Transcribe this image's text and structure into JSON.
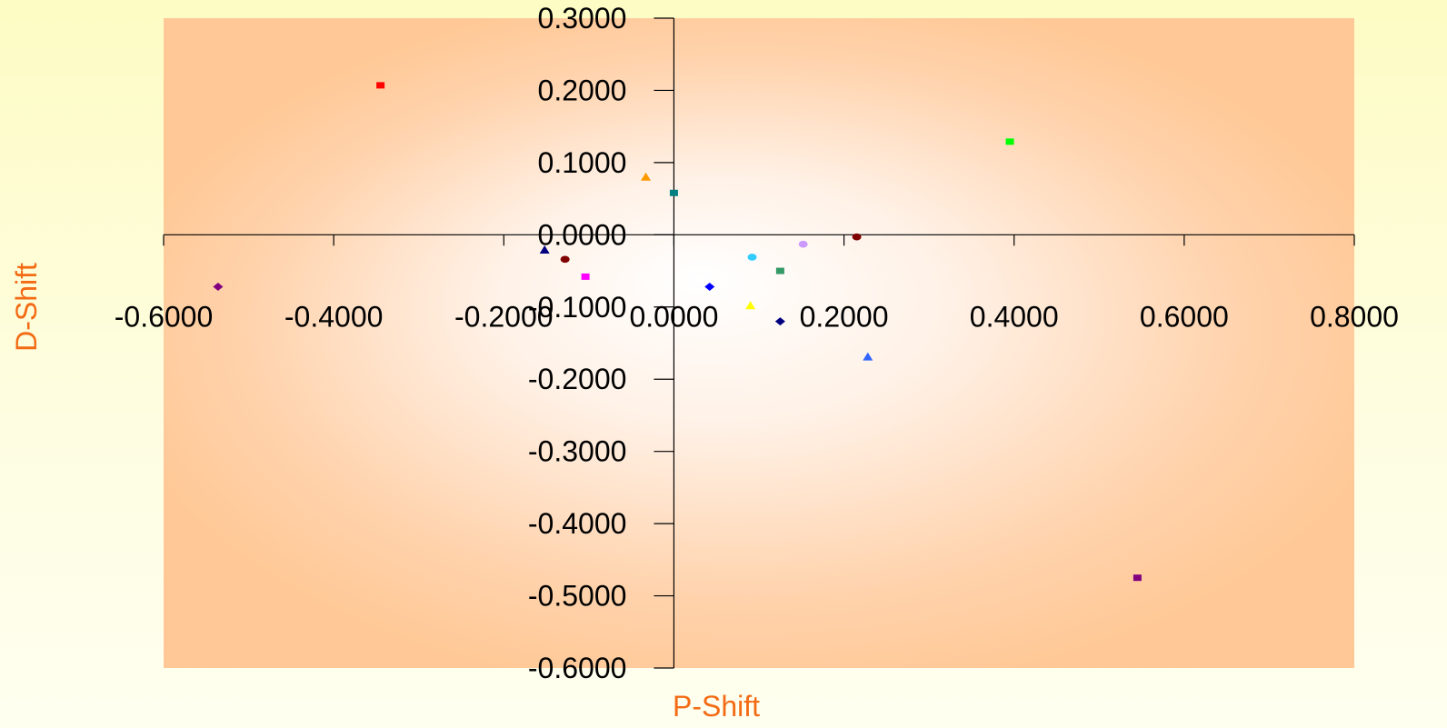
{
  "chart_data": {
    "type": "scatter",
    "xlabel": "P-Shift",
    "ylabel": "D-Shift",
    "xlim": [
      -0.6,
      0.8
    ],
    "ylim": [
      -0.6,
      0.3
    ],
    "x_ticks": [
      "-0.6000",
      "-0.4000",
      "-0.2000",
      "0.0000",
      "0.2000",
      "0.4000",
      "0.6000",
      "0.8000"
    ],
    "y_ticks": [
      "0.3000",
      "0.2000",
      "0.1000",
      "0.0000",
      "-0.1000",
      "-0.2000",
      "-0.3000",
      "-0.4000",
      "-0.5000",
      "-0.6000"
    ],
    "grid": false,
    "legend": "none",
    "points": [
      {
        "x": -0.345,
        "y": 0.207,
        "marker": "square",
        "color": "#ff0000"
      },
      {
        "x": 0.395,
        "y": 0.129,
        "marker": "square",
        "color": "#00ff00"
      },
      {
        "x": -0.033,
        "y": 0.08,
        "marker": "triangle",
        "color": "#ff9900"
      },
      {
        "x": 0.0,
        "y": 0.058,
        "marker": "square",
        "color": "#008080"
      },
      {
        "x": 0.215,
        "y": -0.003,
        "marker": "circle",
        "color": "#800000"
      },
      {
        "x": 0.152,
        "y": -0.013,
        "marker": "circle",
        "color": "#cc99ff"
      },
      {
        "x": -0.152,
        "y": -0.021,
        "marker": "triangle",
        "color": "#000080"
      },
      {
        "x": -0.128,
        "y": -0.034,
        "marker": "circle",
        "color": "#800000"
      },
      {
        "x": 0.092,
        "y": -0.031,
        "marker": "circle",
        "color": "#33ccff"
      },
      {
        "x": 0.125,
        "y": -0.05,
        "marker": "square",
        "color": "#339966"
      },
      {
        "x": -0.104,
        "y": -0.058,
        "marker": "square",
        "color": "#ff00ff"
      },
      {
        "x": -0.536,
        "y": -0.072,
        "marker": "diamond",
        "color": "#800080"
      },
      {
        "x": 0.042,
        "y": -0.072,
        "marker": "diamond",
        "color": "#0000ff"
      },
      {
        "x": 0.09,
        "y": -0.098,
        "marker": "triangle",
        "color": "#ffff00"
      },
      {
        "x": 0.125,
        "y": -0.12,
        "marker": "diamond",
        "color": "#000080"
      },
      {
        "x": 0.228,
        "y": -0.169,
        "marker": "triangle",
        "color": "#3366ff"
      },
      {
        "x": 0.545,
        "y": -0.475,
        "marker": "square",
        "color": "#800080"
      }
    ]
  }
}
